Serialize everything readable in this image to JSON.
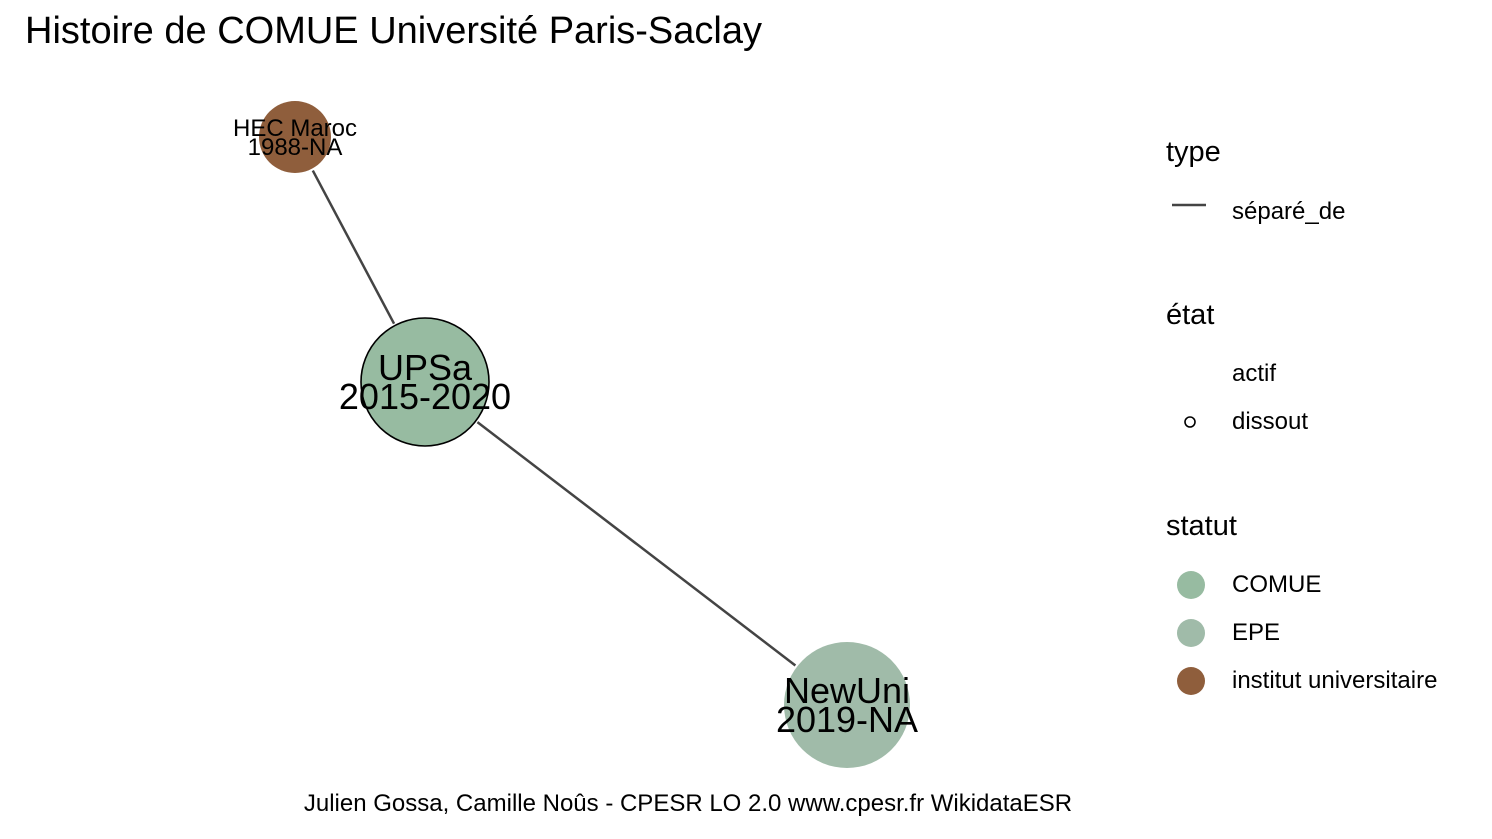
{
  "title": "Histoire de COMUE Université Paris-Saclay",
  "caption": "Julien Gossa, Camille Noûs - CPESR LO 2.0 www.cpesr.fr WikidataESR",
  "nodes": [
    {
      "id": "hec",
      "name": "HEC Maroc",
      "dates": "1988-NA",
      "statut": "institut universitaire",
      "etat": "actif"
    },
    {
      "id": "upsa",
      "name": "UPSa",
      "dates": "2015-2020",
      "statut": "COMUE",
      "etat": "dissout"
    },
    {
      "id": "newuni",
      "name": "NewUni",
      "dates": "2019-NA",
      "statut": "EPE",
      "etat": "actif"
    }
  ],
  "edges": [
    {
      "from": "hec",
      "to": "upsa",
      "type": "séparé_de"
    },
    {
      "from": "upsa",
      "to": "newuni",
      "type": "séparé_de"
    }
  ],
  "legend": {
    "type": {
      "title": "type",
      "items": [
        "séparé_de"
      ]
    },
    "etat": {
      "title": "état",
      "items": [
        "actif",
        "dissout"
      ]
    },
    "statut": {
      "title": "statut",
      "items": [
        "COMUE",
        "EPE",
        "institut universitaire"
      ]
    }
  },
  "colors": {
    "COMUE": "#97bba1",
    "EPE": "#a0bba9",
    "institut universitaire": "#8f5e3c",
    "edge": "#444444"
  }
}
